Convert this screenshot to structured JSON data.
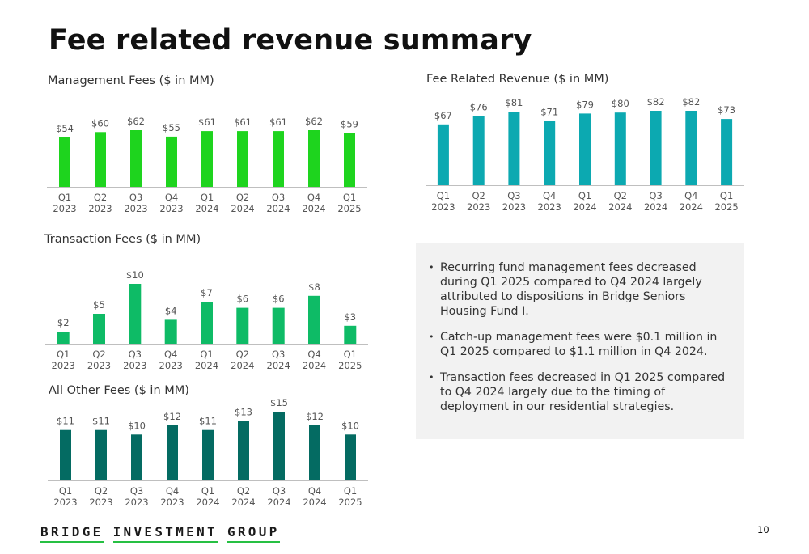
{
  "page": {
    "title": "Fee related revenue summary",
    "page_number": "10"
  },
  "logo": {
    "words": [
      "BRIDGE",
      "INVESTMENT",
      "GROUP"
    ],
    "accent_color": "#26c043"
  },
  "commentary": {
    "bullets": [
      "Recurring fund management fees decreased during Q1 2025 compared to Q4 2024 largely attributed to dispositions in Bridge Seniors Housing Fund I.",
      "Catch-up management fees were $0.1 million in Q1 2025 compared to $1.1 million in Q4 2024.",
      "Transaction fees decreased in Q1 2025 compared to Q4 2024 largely due to the timing of deployment in our residential strategies."
    ]
  },
  "chart_data": [
    {
      "type": "bar",
      "title": "Management Fees ($ in MM)",
      "categories": [
        "Q1 2023",
        "Q2 2023",
        "Q3 2023",
        "Q4 2023",
        "Q1 2024",
        "Q2 2024",
        "Q3 2024",
        "Q4 2024",
        "Q1 2025"
      ],
      "values": [
        54,
        60,
        62,
        55,
        61,
        61,
        61,
        62,
        59
      ],
      "labels": [
        "$54",
        "$60",
        "$62",
        "$55",
        "$61",
        "$61",
        "$61",
        "$62",
        "$59"
      ],
      "color": "#1ed41e",
      "ylim": [
        0,
        62
      ],
      "grid": false
    },
    {
      "type": "bar",
      "title": "Fee Related Revenue ($ in MM)",
      "categories": [
        "Q1 2023",
        "Q2 2023",
        "Q3 2023",
        "Q4 2023",
        "Q1 2024",
        "Q2 2024",
        "Q3 2024",
        "Q4 2024",
        "Q1 2025"
      ],
      "values": [
        67,
        76,
        81,
        71,
        79,
        80,
        82,
        82,
        73
      ],
      "labels": [
        "$67",
        "$76",
        "$81",
        "$71",
        "$79",
        "$80",
        "$82",
        "$82",
        "$73"
      ],
      "color": "#0ca9b1",
      "ylim": [
        0,
        82
      ],
      "grid": false
    },
    {
      "type": "bar",
      "title": "Transaction Fees ($ in MM)",
      "categories": [
        "Q1 2023",
        "Q2 2023",
        "Q3 2023",
        "Q4 2023",
        "Q1 2024",
        "Q2 2024",
        "Q3 2024",
        "Q4 2024",
        "Q1 2025"
      ],
      "values": [
        2,
        5,
        10,
        4,
        7,
        6,
        6,
        8,
        3
      ],
      "labels": [
        "$2",
        "$5",
        "$10",
        "$4",
        "$7",
        "$6",
        "$6",
        "$8",
        "$3"
      ],
      "color": "#0ebb66",
      "ylim": [
        0,
        10
      ],
      "grid": false
    },
    {
      "type": "bar",
      "title": "All Other Fees ($ in MM)",
      "categories": [
        "Q1 2023",
        "Q2 2023",
        "Q3 2023",
        "Q4 2023",
        "Q1 2024",
        "Q2 2024",
        "Q3 2024",
        "Q4 2024",
        "Q1 2025"
      ],
      "values": [
        11,
        11,
        10,
        12,
        11,
        13,
        15,
        12,
        10
      ],
      "labels": [
        "$11",
        "$11",
        "$10",
        "$12",
        "$11",
        "$13",
        "$15",
        "$12",
        "$10"
      ],
      "color": "#046b62",
      "ylim": [
        0,
        15
      ],
      "grid": false
    }
  ]
}
